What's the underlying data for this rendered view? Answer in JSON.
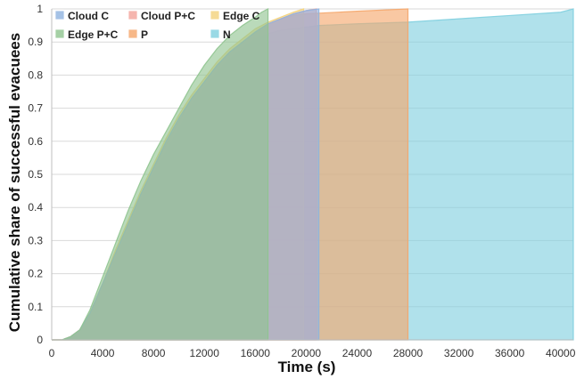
{
  "chart_data": {
    "type": "area",
    "xlabel": "Time (s)",
    "ylabel": "Cumulative share of successful evacuees",
    "xlim": [
      0,
      41000
    ],
    "ylim": [
      0,
      1
    ],
    "x_ticks": [
      "0",
      "4000",
      "8000",
      "12000",
      "16000",
      "20000",
      "24000",
      "28000",
      "32000",
      "36000",
      "40000"
    ],
    "x_tick_values": [
      0,
      4000,
      8000,
      12000,
      16000,
      20000,
      24000,
      28000,
      32000,
      36000,
      40000
    ],
    "y_ticks": [
      "0",
      "0.1",
      "0.2",
      "0.3",
      "0.4",
      "0.5",
      "0.6",
      "0.7",
      "0.8",
      "0.9",
      "1"
    ],
    "y_tick_values": [
      0,
      0.1,
      0.2,
      0.3,
      0.4,
      0.5,
      0.6,
      0.7,
      0.8,
      0.9,
      1
    ],
    "grid": "horizontal",
    "legend_position": "top-left",
    "series": [
      {
        "name": "N",
        "color": "#7fcfdf",
        "x": [
          0,
          800,
          1500,
          2200,
          3000,
          4000,
          5000,
          6000,
          7000,
          8000,
          9000,
          10000,
          11000,
          12000,
          13000,
          14000,
          15000,
          16000,
          17000,
          18000,
          19000,
          20000,
          21000,
          24000,
          28000,
          32000,
          36000,
          40000,
          41000
        ],
        "y": [
          0,
          0,
          0.01,
          0.03,
          0.08,
          0.16,
          0.24,
          0.33,
          0.42,
          0.5,
          0.57,
          0.64,
          0.71,
          0.76,
          0.81,
          0.85,
          0.88,
          0.91,
          0.925,
          0.935,
          0.94,
          0.945,
          0.95,
          0.955,
          0.96,
          0.97,
          0.98,
          0.99,
          1.0
        ]
      },
      {
        "name": "P",
        "color": "#f5a66a",
        "x": [
          0,
          800,
          1500,
          2200,
          3000,
          4000,
          5000,
          6000,
          7000,
          8000,
          9000,
          10000,
          11000,
          12000,
          13000,
          14000,
          15000,
          16000,
          17000,
          18000,
          19000,
          20000,
          24000,
          28000
        ],
        "y": [
          0,
          0,
          0.01,
          0.03,
          0.08,
          0.17,
          0.26,
          0.35,
          0.44,
          0.52,
          0.59,
          0.66,
          0.73,
          0.78,
          0.83,
          0.87,
          0.9,
          0.93,
          0.955,
          0.97,
          0.98,
          0.985,
          0.993,
          1.0
        ]
      },
      {
        "name": "Edge C",
        "color": "#f3d27a",
        "x": [
          0,
          800,
          1500,
          2200,
          3000,
          4000,
          5000,
          6000,
          7000,
          8000,
          9000,
          10000,
          11000,
          12000,
          13000,
          14000,
          15000,
          16000,
          17000,
          18000,
          19000,
          19800
        ],
        "y": [
          0,
          0,
          0.01,
          0.03,
          0.08,
          0.17,
          0.27,
          0.36,
          0.45,
          0.53,
          0.61,
          0.68,
          0.74,
          0.79,
          0.84,
          0.88,
          0.91,
          0.94,
          0.96,
          0.975,
          0.99,
          1.0
        ]
      },
      {
        "name": "Cloud P+C",
        "color": "#f2a39a",
        "x": [
          0,
          800,
          1500,
          2200,
          3000,
          4000,
          5000,
          6000,
          7000,
          8000,
          9000,
          10000,
          11000,
          12000,
          13000,
          14000,
          15000,
          16000,
          17000,
          18000,
          19000,
          20000,
          20800
        ],
        "y": [
          0,
          0,
          0.01,
          0.03,
          0.08,
          0.17,
          0.26,
          0.35,
          0.44,
          0.52,
          0.6,
          0.67,
          0.73,
          0.78,
          0.83,
          0.87,
          0.9,
          0.93,
          0.955,
          0.97,
          0.985,
          0.995,
          1.0
        ]
      },
      {
        "name": "Cloud C",
        "color": "#8fb3e0",
        "x": [
          0,
          800,
          1500,
          2200,
          3000,
          4000,
          5000,
          6000,
          7000,
          8000,
          9000,
          10000,
          11000,
          12000,
          13000,
          14000,
          15000,
          16000,
          17000,
          18000,
          19000,
          20000,
          21000
        ],
        "y": [
          0,
          0,
          0.01,
          0.03,
          0.08,
          0.17,
          0.26,
          0.35,
          0.44,
          0.52,
          0.6,
          0.67,
          0.73,
          0.78,
          0.83,
          0.87,
          0.9,
          0.93,
          0.955,
          0.97,
          0.985,
          0.995,
          1.0
        ]
      },
      {
        "name": "Edge P+C",
        "color": "#8fc48f",
        "x": [
          0,
          800,
          1500,
          2200,
          3000,
          4000,
          5000,
          6000,
          7000,
          8000,
          9000,
          10000,
          11000,
          12000,
          13000,
          14000,
          15000,
          16000,
          16500,
          17000
        ],
        "y": [
          0,
          0,
          0.01,
          0.03,
          0.09,
          0.19,
          0.29,
          0.39,
          0.48,
          0.56,
          0.63,
          0.7,
          0.77,
          0.83,
          0.88,
          0.92,
          0.95,
          0.975,
          0.99,
          1.0
        ]
      }
    ],
    "legend_order": [
      "Cloud C",
      "Cloud P+C",
      "Edge C",
      "Edge P+C",
      "P",
      "N"
    ]
  }
}
